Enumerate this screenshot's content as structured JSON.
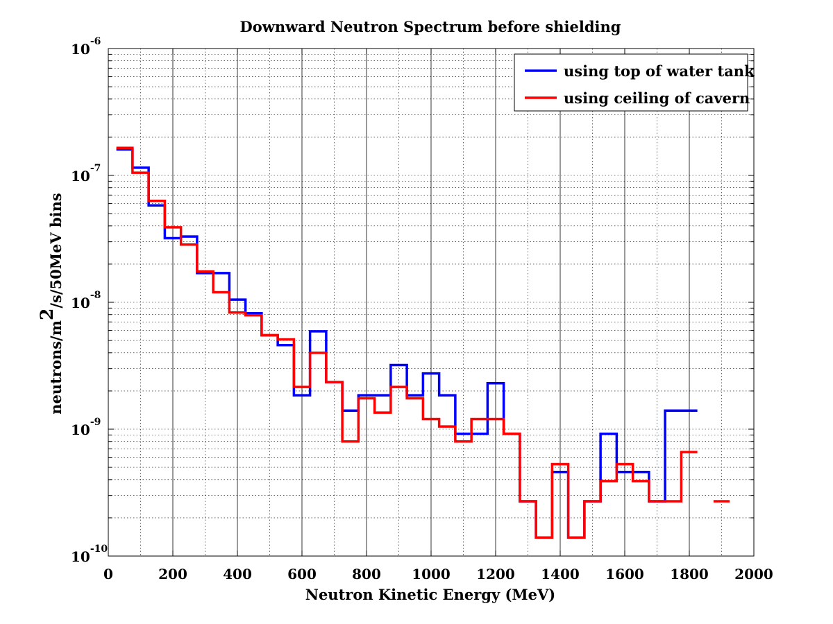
{
  "chart_data": {
    "type": "line",
    "title": "Downward Neutron Spectrum before shielding",
    "xlabel": "Neutron Kinetic Energy (MeV)",
    "ylabel": {
      "prefix": "neutrons/m",
      "superscript": "2",
      "suffix": "/s/50MeV bins"
    },
    "xlim": [
      0,
      2000
    ],
    "x_ticks": [
      0,
      200,
      400,
      600,
      800,
      1000,
      1200,
      1400,
      1600,
      1800,
      2000
    ],
    "x_tick_labels": [
      "0",
      "200",
      "400",
      "600",
      "800",
      "1000",
      "1200",
      "1400",
      "1600",
      "1800",
      "2000"
    ],
    "ylim": [
      1e-10,
      1e-06
    ],
    "y_scale": "log",
    "y_ticks": [
      {
        "value": 1e-06,
        "base": "10",
        "exp": "-6"
      },
      {
        "value": 1e-07,
        "base": "10",
        "exp": "-7"
      },
      {
        "value": 1e-08,
        "base": "10",
        "exp": "-8"
      },
      {
        "value": 1e-09,
        "base": "10",
        "exp": "-9"
      },
      {
        "value": 1e-10,
        "base": "10",
        "exp": "-10"
      }
    ],
    "grid": true,
    "legend_position": "top-right",
    "bin_width": 50,
    "series": [
      {
        "name": "using top of water tank",
        "color": "#0000ff",
        "bin_centers": [
          50,
          100,
          150,
          200,
          250,
          300,
          350,
          400,
          450,
          500,
          550,
          600,
          650,
          700,
          750,
          800,
          850,
          900,
          950,
          1000,
          1050,
          1100,
          1150,
          1200,
          1250,
          1300,
          1350,
          1400,
          1450,
          1500,
          1550,
          1600,
          1650,
          1700,
          1750,
          1800,
          1850,
          1900
        ],
        "values": [
          1.6e-07,
          1.15e-07,
          5.8e-08,
          3.2e-08,
          3.3e-08,
          1.7e-08,
          1.7e-08,
          1.05e-08,
          8.2e-09,
          5.5e-09,
          4.6e-09,
          1.85e-09,
          5.9e-09,
          2.35e-09,
          1.4e-09,
          1.85e-09,
          1.85e-09,
          3.2e-09,
          1.85e-09,
          2.75e-09,
          1.85e-09,
          9.2e-10,
          9.2e-10,
          2.3e-09,
          9.2e-10,
          2.7e-10,
          1.4e-10,
          4.6e-10,
          1.4e-10,
          2.7e-10,
          9.2e-10,
          4.6e-10,
          4.6e-10,
          2.7e-10,
          1.4e-09,
          1.4e-09,
          null,
          null
        ]
      },
      {
        "name": "using ceiling of cavern",
        "color": "#ff0000",
        "bin_centers": [
          50,
          100,
          150,
          200,
          250,
          300,
          350,
          400,
          450,
          500,
          550,
          600,
          650,
          700,
          750,
          800,
          850,
          900,
          950,
          1000,
          1050,
          1100,
          1150,
          1200,
          1250,
          1300,
          1350,
          1400,
          1450,
          1500,
          1550,
          1600,
          1650,
          1700,
          1750,
          1800,
          1850,
          1900
        ],
        "values": [
          1.65e-07,
          1.05e-07,
          6.3e-08,
          3.9e-08,
          2.85e-08,
          1.75e-08,
          1.2e-08,
          8.3e-09,
          7.9e-09,
          5.5e-09,
          5.1e-09,
          2.15e-09,
          4e-09,
          2.35e-09,
          8e-10,
          1.75e-09,
          1.35e-09,
          2.15e-09,
          1.75e-09,
          1.2e-09,
          1.05e-09,
          8e-10,
          1.2e-09,
          1.2e-09,
          9.2e-10,
          2.7e-10,
          1.4e-10,
          5.3e-10,
          1.4e-10,
          2.7e-10,
          3.9e-10,
          5.3e-10,
          3.9e-10,
          2.7e-10,
          2.7e-10,
          6.6e-10,
          null,
          2.7e-10
        ]
      }
    ],
    "legend_entries": [
      "using top of water tank",
      "using ceiling of cavern"
    ]
  }
}
